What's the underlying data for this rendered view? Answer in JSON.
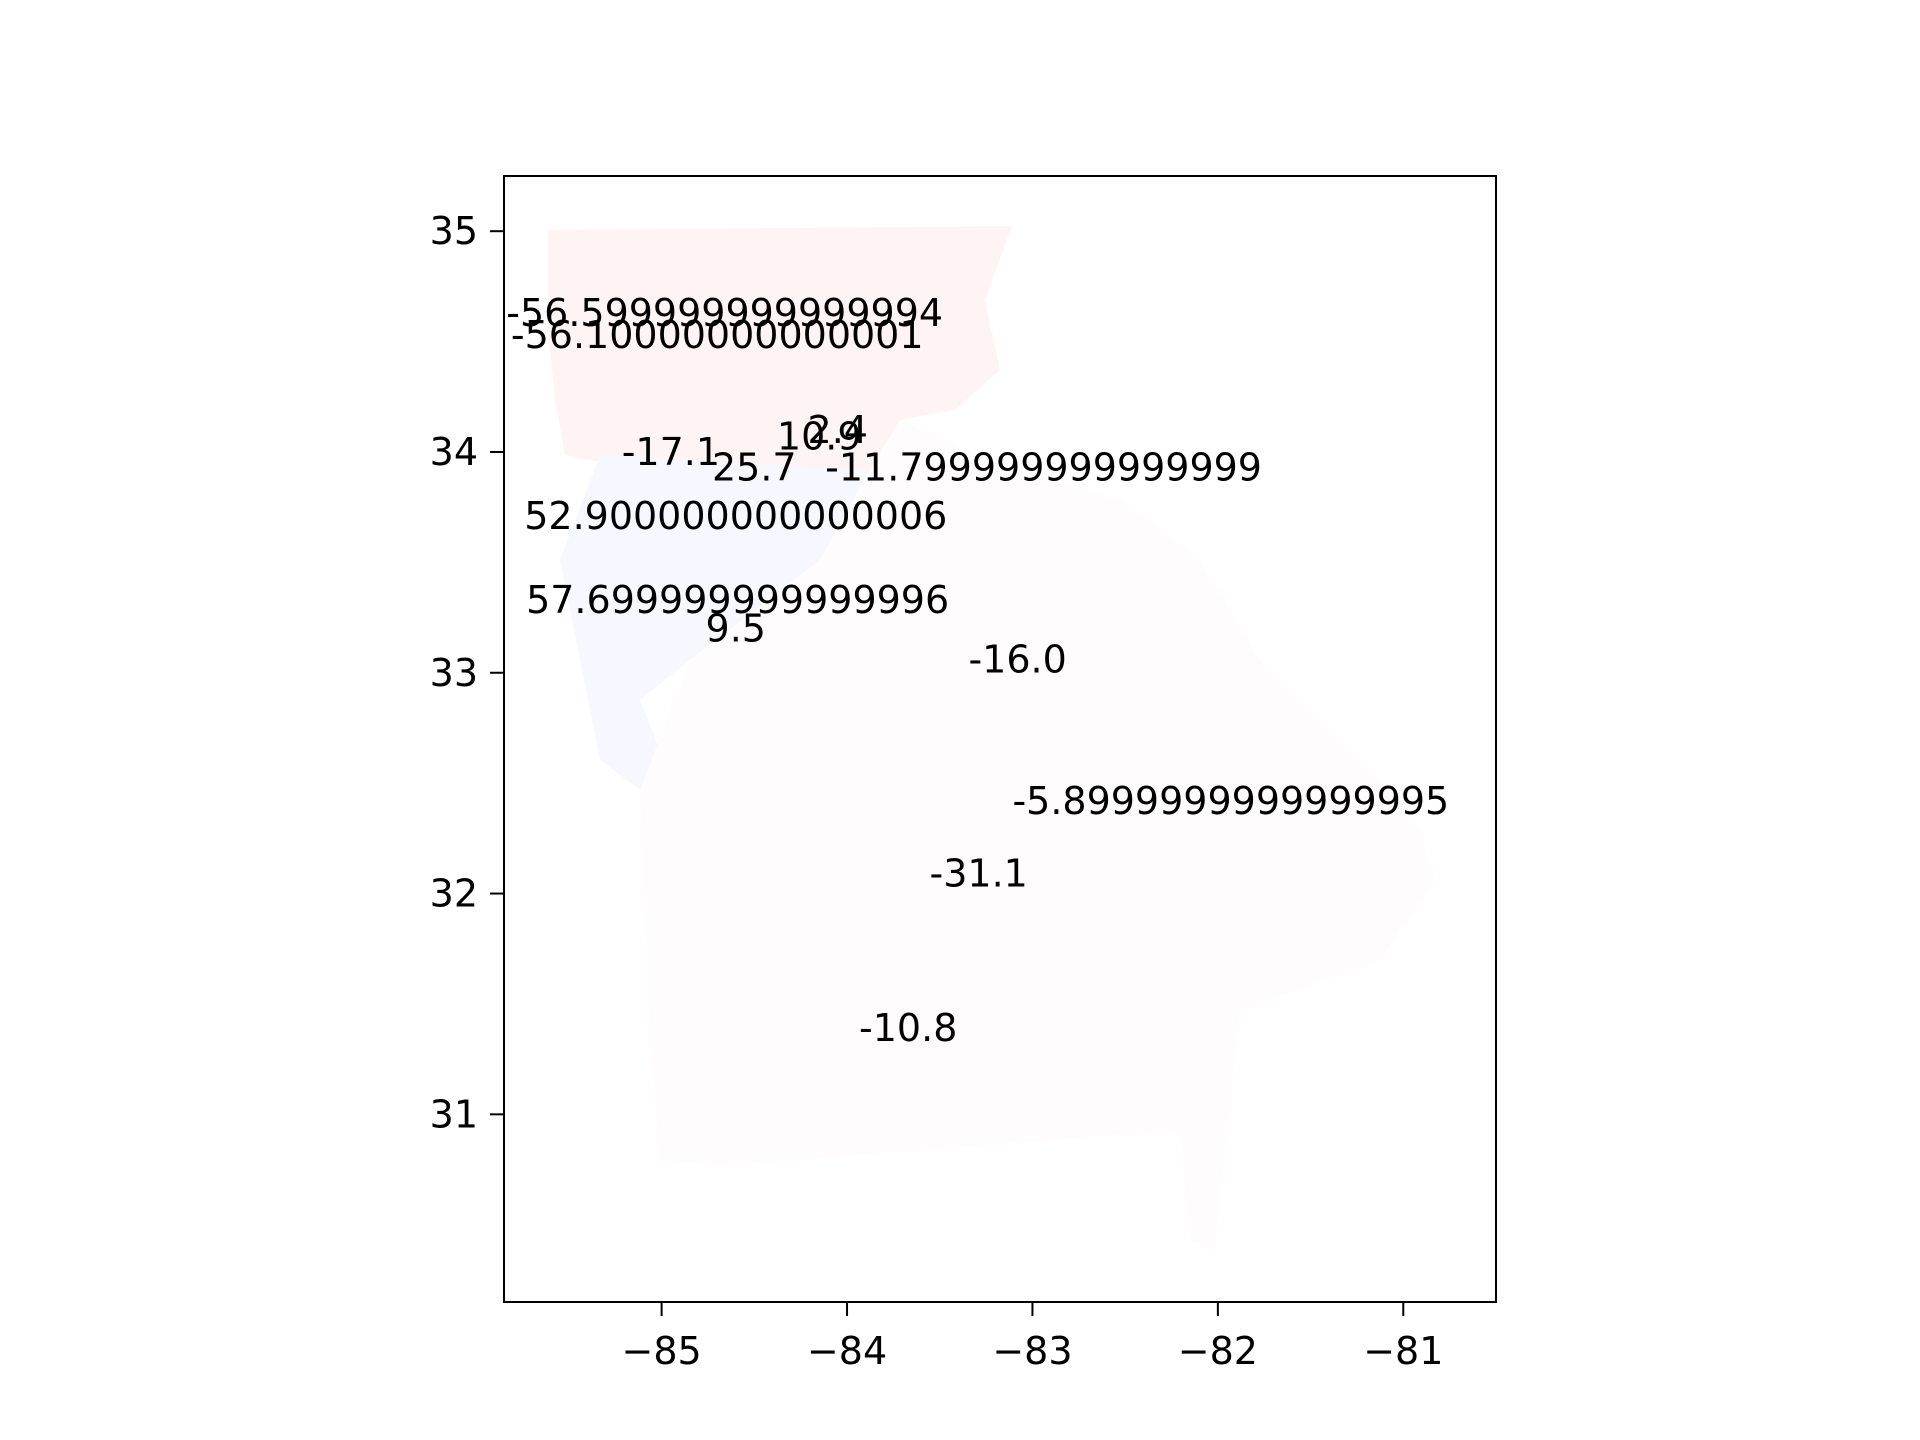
{
  "chart_data": {
    "type": "map",
    "xlim": [
      -85.85,
      -80.5
    ],
    "ylim": [
      30.15,
      35.25
    ],
    "xticks": [
      {
        "value": -85,
        "label": "−85"
      },
      {
        "value": -84,
        "label": "−84"
      },
      {
        "value": -83,
        "label": "−83"
      },
      {
        "value": -82,
        "label": "−82"
      },
      {
        "value": -81,
        "label": "−81"
      }
    ],
    "yticks": [
      {
        "value": 31,
        "label": "31"
      },
      {
        "value": 32,
        "label": "32"
      },
      {
        "value": 33,
        "label": "33"
      },
      {
        "value": 34,
        "label": "34"
      },
      {
        "value": 35,
        "label": "35"
      }
    ],
    "colors": {
      "north_tint": "#fff4f4",
      "west_tint": "#f7f7ff",
      "south_tint": "#fffcfd",
      "frame": "#000000"
    },
    "annotations": [
      {
        "text": "-56.599999999999994",
        "x": -84.66,
        "y": 34.63
      },
      {
        "text": "-56.10000000000001",
        "x": -84.7,
        "y": 34.53
      },
      {
        "text": "2.4",
        "x": -84.05,
        "y": 34.1
      },
      {
        "text": "10.9",
        "x": -84.15,
        "y": 34.07
      },
      {
        "text": "-17.1",
        "x": -84.95,
        "y": 34.0
      },
      {
        "text": "25.7",
        "x": -84.5,
        "y": 33.93
      },
      {
        "text": "-11.799999999999999",
        "x": -82.94,
        "y": 33.93
      },
      {
        "text": "52.900000000000006",
        "x": -84.6,
        "y": 33.71
      },
      {
        "text": "57.699999999999996",
        "x": -84.59,
        "y": 33.33
      },
      {
        "text": "9.5",
        "x": -84.6,
        "y": 33.2
      },
      {
        "text": "-16.0",
        "x": -83.08,
        "y": 33.06
      },
      {
        "text": "-5.8999999999999995",
        "x": -81.93,
        "y": 32.42
      },
      {
        "text": "-31.1",
        "x": -83.29,
        "y": 32.09
      },
      {
        "text": "-10.8",
        "x": -83.67,
        "y": 31.39
      }
    ]
  }
}
